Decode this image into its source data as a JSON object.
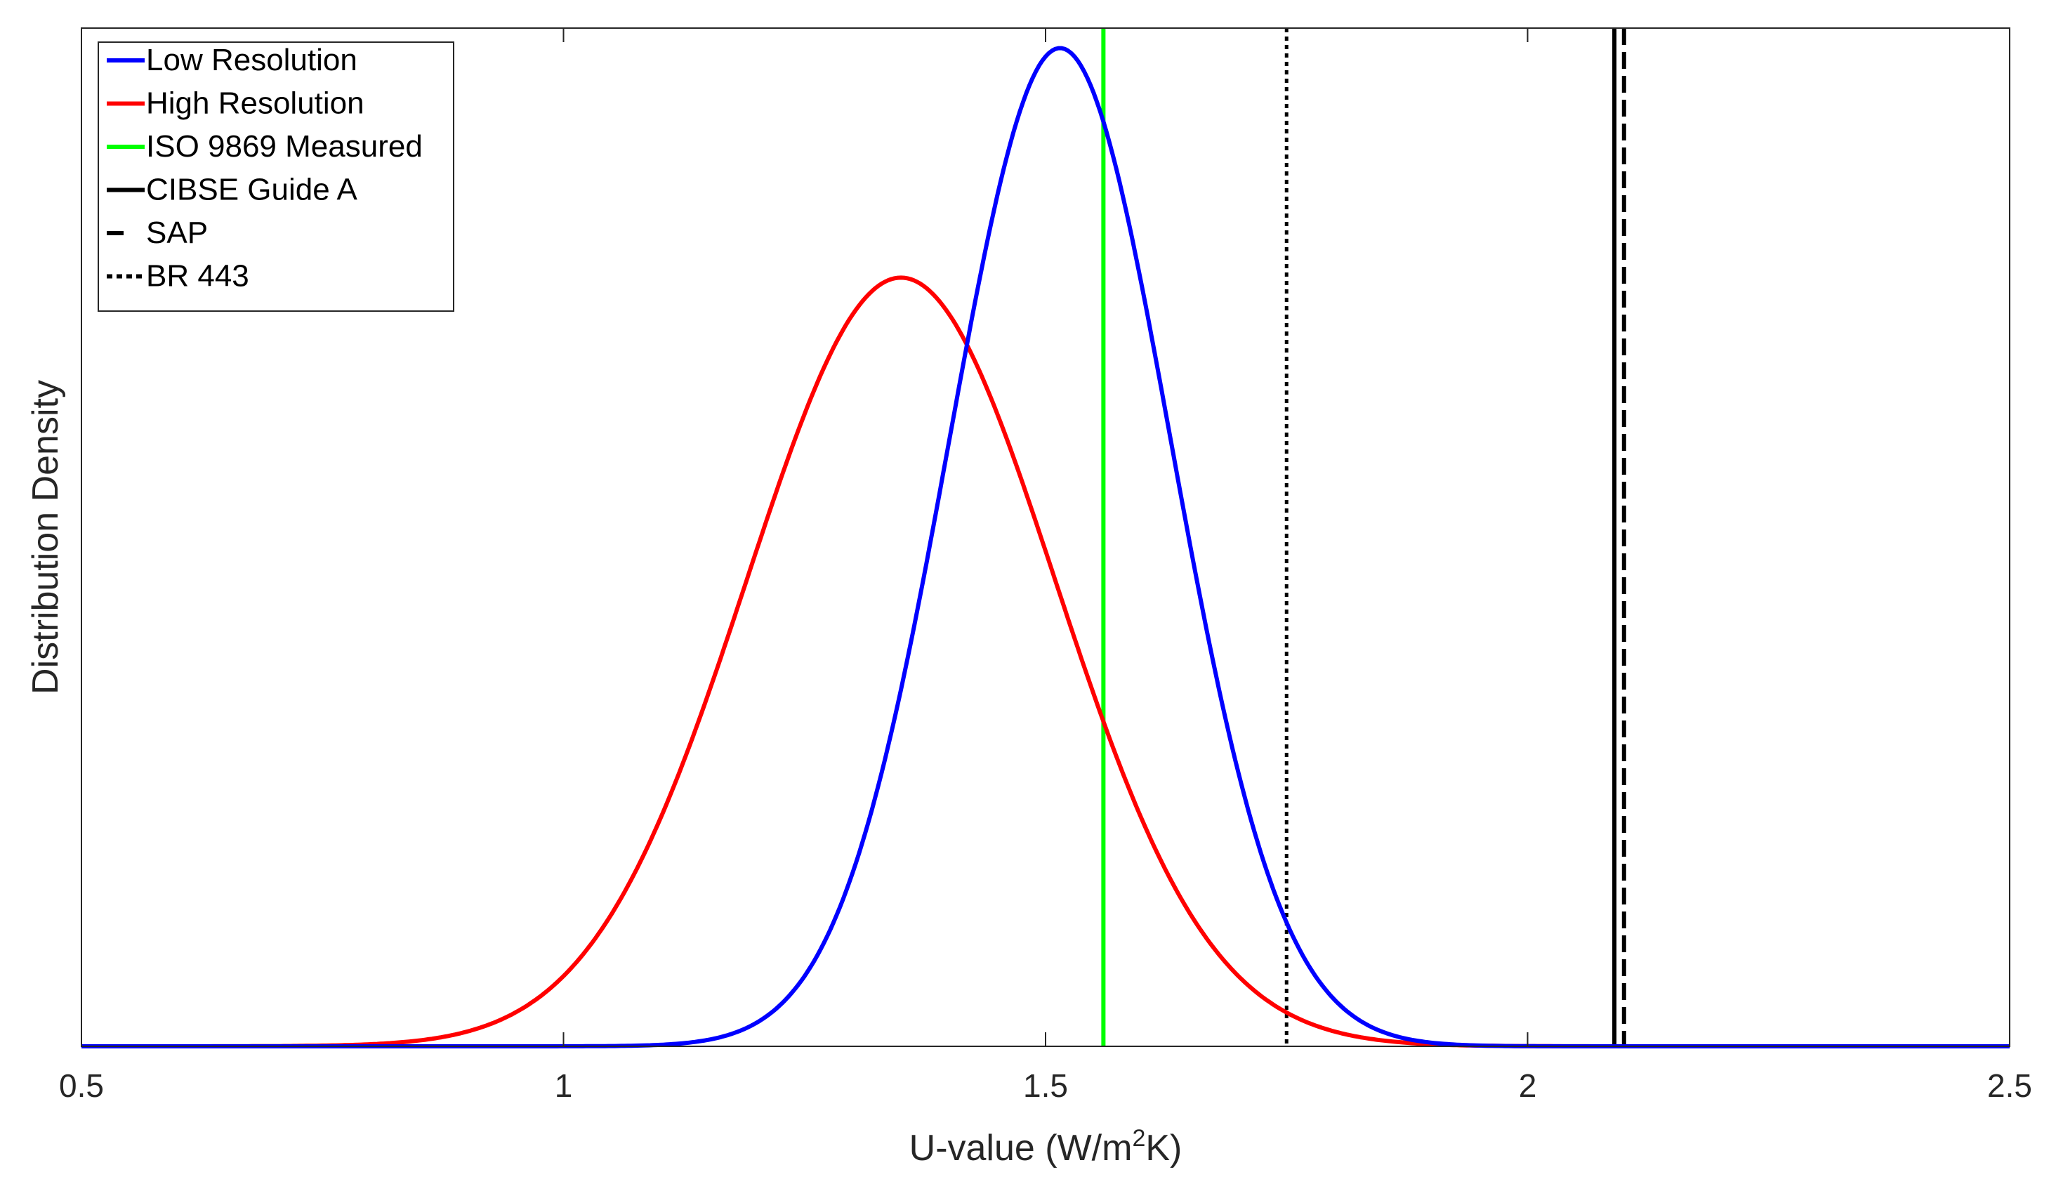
{
  "chart_data": {
    "type": "line",
    "title": "",
    "xlabel": "U-value (W/m²K)",
    "xlabel_parts": {
      "prefix": "U-value (W/m",
      "sup": "2",
      "suffix": "K)"
    },
    "ylabel": "Distribution Density",
    "xlim": [
      0.5,
      2.5
    ],
    "ylim": [
      0,
      1.02
    ],
    "xticks": [
      0.5,
      1,
      1.5,
      2,
      2.5
    ],
    "xtick_labels": [
      "0.5",
      "1",
      "1.5",
      "2",
      "2.5"
    ],
    "grid": false,
    "legend_position": "top-left",
    "series": [
      {
        "name": "Low Resolution",
        "kind": "normal-curve",
        "mean": 1.515,
        "sd": 0.115,
        "peak": 1.0,
        "color": "#0000ff",
        "dash": "solid"
      },
      {
        "name": "High Resolution",
        "kind": "normal-curve",
        "mean": 1.35,
        "sd": 0.16,
        "peak": 0.77,
        "color": "#ff0000",
        "dash": "solid"
      },
      {
        "name": "ISO 9869 Measured",
        "kind": "vertical-line",
        "x": 1.56,
        "color": "#00ff00",
        "dash": "solid"
      },
      {
        "name": "CIBSE Guide A",
        "kind": "vertical-line",
        "x": 2.09,
        "color": "#000000",
        "dash": "solid"
      },
      {
        "name": "SAP",
        "kind": "vertical-line",
        "x": 2.1,
        "color": "#000000",
        "dash": "dashed"
      },
      {
        "name": "BR 443",
        "kind": "vertical-line",
        "x": 1.75,
        "color": "#000000",
        "dash": "dotted"
      }
    ]
  }
}
